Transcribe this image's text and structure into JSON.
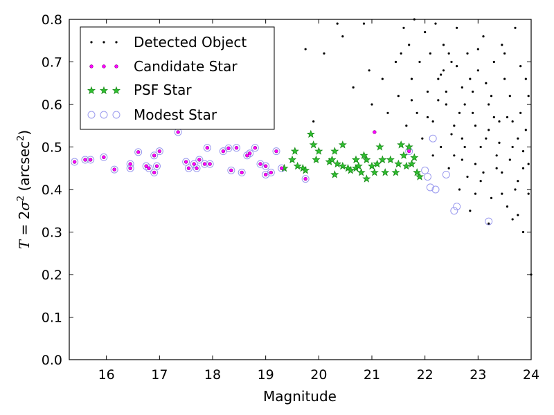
{
  "chart_data": {
    "type": "scatter",
    "xlabel": "Magnitude",
    "ylabel_parts": {
      "var": "T",
      "eq": " = 2",
      "sigma": "σ",
      "sq": "2",
      "unit": " (arcsec",
      "unit_sq": "2",
      "close": ")"
    },
    "xlim": [
      15.3,
      24
    ],
    "ylim": [
      0,
      0.8
    ],
    "xticks": [
      "16",
      "17",
      "18",
      "19",
      "20",
      "21",
      "22",
      "23",
      "24"
    ],
    "yticks": [
      "0.0",
      "0.1",
      "0.2",
      "0.3",
      "0.4",
      "0.5",
      "0.6",
      "0.7",
      "0.8"
    ],
    "grid": false,
    "legend_position": "top-left",
    "legend": [
      "Detected Object",
      "Candidate Star",
      "PSF Star",
      "Modest Star"
    ],
    "colors": {
      "detected": "#000000",
      "candidate": "#ff00ff",
      "psf": "#1a8a1a",
      "modest": "#9999ee"
    },
    "series": [
      {
        "name": "Detected Object",
        "points": [
          [
            19.75,
            0.73
          ],
          [
            19.9,
            0.56
          ],
          [
            20.1,
            0.72
          ],
          [
            20.35,
            0.79
          ],
          [
            20.45,
            0.76
          ],
          [
            20.65,
            0.64
          ],
          [
            20.85,
            0.79
          ],
          [
            20.95,
            0.68
          ],
          [
            21.0,
            0.6
          ],
          [
            21.2,
            0.66
          ],
          [
            21.3,
            0.58
          ],
          [
            21.45,
            0.7
          ],
          [
            21.5,
            0.62
          ],
          [
            21.6,
            0.78
          ],
          [
            21.65,
            0.55
          ],
          [
            21.7,
            0.74
          ],
          [
            21.75,
            0.66
          ],
          [
            21.8,
            0.8
          ],
          [
            21.85,
            0.58
          ],
          [
            21.9,
            0.7
          ],
          [
            21.95,
            0.52
          ],
          [
            22.0,
            0.77
          ],
          [
            22.05,
            0.63
          ],
          [
            22.1,
            0.72
          ],
          [
            22.15,
            0.56
          ],
          [
            22.2,
            0.79
          ],
          [
            22.25,
            0.66
          ],
          [
            22.3,
            0.5
          ],
          [
            22.35,
            0.74
          ],
          [
            22.4,
            0.6
          ],
          [
            22.45,
            0.45
          ],
          [
            22.5,
            0.7
          ],
          [
            22.55,
            0.55
          ],
          [
            22.6,
            0.78
          ],
          [
            22.65,
            0.4
          ],
          [
            22.7,
            0.64
          ],
          [
            22.75,
            0.5
          ],
          [
            22.8,
            0.72
          ],
          [
            22.85,
            0.35
          ],
          [
            22.9,
            0.58
          ],
          [
            22.95,
            0.46
          ],
          [
            23.0,
            0.68
          ],
          [
            23.05,
            0.42
          ],
          [
            23.1,
            0.76
          ],
          [
            23.15,
            0.52
          ],
          [
            23.2,
            0.6
          ],
          [
            23.25,
            0.38
          ],
          [
            23.3,
            0.7
          ],
          [
            23.35,
            0.48
          ],
          [
            23.4,
            0.56
          ],
          [
            23.45,
            0.44
          ],
          [
            23.5,
            0.72
          ],
          [
            23.55,
            0.36
          ],
          [
            23.6,
            0.62
          ],
          [
            23.65,
            0.5
          ],
          [
            23.7,
            0.78
          ],
          [
            23.75,
            0.42
          ],
          [
            23.8,
            0.58
          ],
          [
            23.85,
            0.3
          ],
          [
            23.9,
            0.66
          ],
          [
            23.95,
            0.46
          ],
          [
            24.0,
            0.2
          ],
          [
            22.35,
            0.68
          ],
          [
            22.55,
            0.48
          ],
          [
            22.75,
            0.6
          ],
          [
            22.95,
            0.55
          ],
          [
            23.15,
            0.65
          ],
          [
            23.35,
            0.45
          ],
          [
            23.55,
            0.57
          ],
          [
            23.75,
            0.52
          ],
          [
            23.95,
            0.62
          ],
          [
            22.45,
            0.72
          ],
          [
            22.65,
            0.58
          ],
          [
            22.85,
            0.66
          ],
          [
            23.05,
            0.5
          ],
          [
            23.25,
            0.62
          ],
          [
            23.45,
            0.74
          ],
          [
            23.65,
            0.56
          ],
          [
            23.85,
            0.49
          ],
          [
            22.25,
            0.61
          ],
          [
            22.5,
            0.53
          ],
          [
            22.7,
            0.47
          ],
          [
            22.9,
            0.63
          ],
          [
            23.1,
            0.44
          ],
          [
            23.3,
            0.57
          ],
          [
            23.5,
            0.66
          ],
          [
            23.7,
            0.4
          ],
          [
            23.9,
            0.54
          ],
          [
            22.15,
            0.48
          ],
          [
            22.6,
            0.69
          ],
          [
            23.0,
            0.73
          ],
          [
            23.4,
            0.51
          ],
          [
            23.8,
            0.69
          ],
          [
            22.8,
            0.43
          ],
          [
            23.2,
            0.54
          ],
          [
            23.6,
            0.47
          ],
          [
            22.4,
            0.63
          ],
          [
            23.95,
            0.39
          ],
          [
            21.75,
            0.61
          ],
          [
            21.55,
            0.72
          ],
          [
            22.05,
            0.57
          ],
          [
            22.3,
            0.67
          ],
          [
            23.45,
            0.39
          ],
          [
            23.75,
            0.34
          ],
          [
            23.85,
            0.45
          ],
          [
            23.65,
            0.33
          ],
          [
            23.2,
            0.32
          ],
          [
            22.95,
            0.39
          ],
          [
            22.7,
            0.52
          ]
        ]
      },
      {
        "name": "Candidate Star",
        "points": [
          [
            15.4,
            0.465
          ],
          [
            15.6,
            0.47
          ],
          [
            15.7,
            0.47
          ],
          [
            15.95,
            0.476
          ],
          [
            16.15,
            0.447
          ],
          [
            16.45,
            0.46
          ],
          [
            16.45,
            0.45
          ],
          [
            16.6,
            0.488
          ],
          [
            16.75,
            0.455
          ],
          [
            16.8,
            0.45
          ],
          [
            16.9,
            0.44
          ],
          [
            16.9,
            0.48
          ],
          [
            16.95,
            0.455
          ],
          [
            17.0,
            0.49
          ],
          [
            17.35,
            0.535
          ],
          [
            17.5,
            0.465
          ],
          [
            17.55,
            0.45
          ],
          [
            17.65,
            0.46
          ],
          [
            17.7,
            0.45
          ],
          [
            17.75,
            0.47
          ],
          [
            17.85,
            0.46
          ],
          [
            17.9,
            0.498
          ],
          [
            17.95,
            0.46
          ],
          [
            18.2,
            0.49
          ],
          [
            18.3,
            0.497
          ],
          [
            18.35,
            0.445
          ],
          [
            18.45,
            0.498
          ],
          [
            18.55,
            0.44
          ],
          [
            18.65,
            0.48
          ],
          [
            18.7,
            0.485
          ],
          [
            18.8,
            0.498
          ],
          [
            18.9,
            0.46
          ],
          [
            19.0,
            0.455
          ],
          [
            19.0,
            0.435
          ],
          [
            19.1,
            0.44
          ],
          [
            19.2,
            0.49
          ],
          [
            19.3,
            0.45
          ],
          [
            19.75,
            0.425
          ],
          [
            21.05,
            0.535
          ],
          [
            21.7,
            0.49
          ]
        ]
      },
      {
        "name": "PSF Star",
        "points": [
          [
            19.35,
            0.45
          ],
          [
            19.5,
            0.47
          ],
          [
            19.55,
            0.49
          ],
          [
            19.6,
            0.455
          ],
          [
            19.7,
            0.45
          ],
          [
            19.75,
            0.445
          ],
          [
            19.85,
            0.53
          ],
          [
            19.9,
            0.505
          ],
          [
            19.95,
            0.47
          ],
          [
            20.0,
            0.49
          ],
          [
            20.2,
            0.465
          ],
          [
            20.25,
            0.47
          ],
          [
            20.3,
            0.435
          ],
          [
            20.3,
            0.49
          ],
          [
            20.35,
            0.46
          ],
          [
            20.45,
            0.505
          ],
          [
            20.45,
            0.455
          ],
          [
            20.55,
            0.45
          ],
          [
            20.6,
            0.445
          ],
          [
            20.7,
            0.45
          ],
          [
            20.7,
            0.47
          ],
          [
            20.75,
            0.455
          ],
          [
            20.8,
            0.44
          ],
          [
            20.85,
            0.48
          ],
          [
            20.9,
            0.47
          ],
          [
            20.9,
            0.425
          ],
          [
            21.0,
            0.455
          ],
          [
            21.05,
            0.44
          ],
          [
            21.1,
            0.46
          ],
          [
            21.15,
            0.5
          ],
          [
            21.2,
            0.47
          ],
          [
            21.25,
            0.44
          ],
          [
            21.35,
            0.47
          ],
          [
            21.45,
            0.44
          ],
          [
            21.5,
            0.46
          ],
          [
            21.55,
            0.505
          ],
          [
            21.6,
            0.48
          ],
          [
            21.65,
            0.455
          ],
          [
            21.7,
            0.5
          ],
          [
            21.75,
            0.46
          ],
          [
            21.8,
            0.475
          ],
          [
            21.85,
            0.44
          ],
          [
            21.9,
            0.43
          ]
        ]
      },
      {
        "name": "Modest Star",
        "points": [
          [
            15.4,
            0.465
          ],
          [
            15.6,
            0.47
          ],
          [
            15.7,
            0.47
          ],
          [
            15.95,
            0.476
          ],
          [
            16.15,
            0.447
          ],
          [
            16.45,
            0.46
          ],
          [
            16.45,
            0.45
          ],
          [
            16.6,
            0.488
          ],
          [
            16.75,
            0.455
          ],
          [
            16.8,
            0.45
          ],
          [
            16.9,
            0.44
          ],
          [
            16.9,
            0.48
          ],
          [
            16.95,
            0.455
          ],
          [
            17.0,
            0.49
          ],
          [
            17.35,
            0.535
          ],
          [
            17.5,
            0.465
          ],
          [
            17.55,
            0.45
          ],
          [
            17.65,
            0.46
          ],
          [
            17.7,
            0.45
          ],
          [
            17.75,
            0.47
          ],
          [
            17.85,
            0.46
          ],
          [
            17.9,
            0.498
          ],
          [
            17.95,
            0.46
          ],
          [
            18.2,
            0.49
          ],
          [
            18.3,
            0.497
          ],
          [
            18.35,
            0.445
          ],
          [
            18.45,
            0.498
          ],
          [
            18.55,
            0.44
          ],
          [
            18.65,
            0.48
          ],
          [
            18.7,
            0.485
          ],
          [
            18.8,
            0.498
          ],
          [
            18.9,
            0.46
          ],
          [
            19.0,
            0.455
          ],
          [
            19.0,
            0.435
          ],
          [
            19.1,
            0.44
          ],
          [
            19.2,
            0.49
          ],
          [
            19.3,
            0.45
          ],
          [
            19.75,
            0.425
          ],
          [
            21.7,
            0.49
          ],
          [
            22.0,
            0.445
          ],
          [
            22.05,
            0.43
          ],
          [
            22.1,
            0.405
          ],
          [
            22.15,
            0.52
          ],
          [
            22.2,
            0.4
          ],
          [
            22.4,
            0.435
          ],
          [
            22.55,
            0.35
          ],
          [
            22.6,
            0.36
          ],
          [
            23.2,
            0.325
          ]
        ]
      }
    ]
  }
}
